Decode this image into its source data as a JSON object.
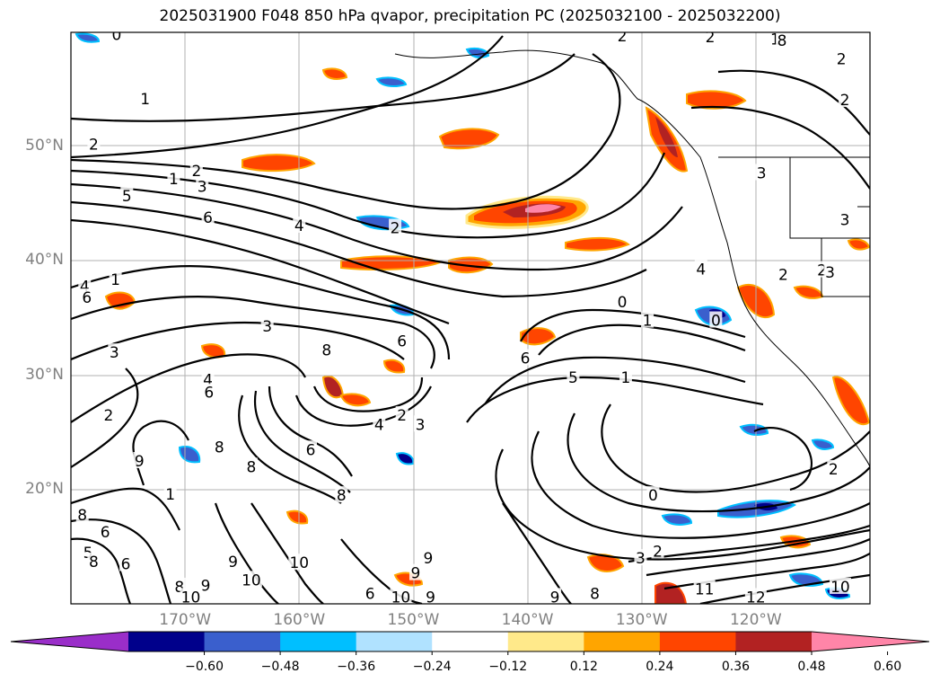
{
  "title": "2025031900 F048 850 hPa qvapor, precipitation PC (2025032100 - 2025032200)",
  "map": {
    "lat_labels": [
      "50°N",
      "40°N",
      "30°N",
      "20°N"
    ],
    "lat_values": [
      50,
      40,
      30,
      20
    ],
    "lon_labels": [
      "170°W",
      "160°W",
      "150°W",
      "140°W",
      "130°W",
      "120°W"
    ],
    "lon_values": [
      -170,
      -160,
      -150,
      -140,
      -130,
      -120
    ],
    "extent": {
      "lon_min": -180,
      "lon_max": -110,
      "lat_min": 10,
      "lat_max": 60
    },
    "contour_labels": [
      {
        "text": "0",
        "lon": -176,
        "lat": 59.8
      },
      {
        "text": "1",
        "lon": -173.5,
        "lat": 54.2
      },
      {
        "text": "2",
        "lon": -178,
        "lat": 50.2
      },
      {
        "text": "1",
        "lon": -171,
        "lat": 47.2
      },
      {
        "text": "2",
        "lon": -169,
        "lat": 47.9
      },
      {
        "text": "5",
        "lon": -175.1,
        "lat": 45.7
      },
      {
        "text": "3",
        "lon": -168.5,
        "lat": 46.5
      },
      {
        "text": "6",
        "lon": -168,
        "lat": 43.8
      },
      {
        "text": "4",
        "lon": -160,
        "lat": 43.1
      },
      {
        "text": "2",
        "lon": -151.6,
        "lat": 42.9
      },
      {
        "text": "4",
        "lon": -178.8,
        "lat": 37.8
      },
      {
        "text": "6",
        "lon": -178.6,
        "lat": 36.8
      },
      {
        "text": "1",
        "lon": -176.1,
        "lat": 38.4
      },
      {
        "text": "3",
        "lon": -162.8,
        "lat": 34.3
      },
      {
        "text": "8",
        "lon": -157.6,
        "lat": 32.2
      },
      {
        "text": "6",
        "lon": -151,
        "lat": 33.0
      },
      {
        "text": "3",
        "lon": -176.2,
        "lat": 32.0
      },
      {
        "text": "4",
        "lon": -168,
        "lat": 29.6
      },
      {
        "text": "6",
        "lon": -167.9,
        "lat": 28.5
      },
      {
        "text": "2",
        "lon": -176.7,
        "lat": 26.5
      },
      {
        "text": "2",
        "lon": -151,
        "lat": 26.5
      },
      {
        "text": "3",
        "lon": -149.4,
        "lat": 25.7
      },
      {
        "text": "4",
        "lon": -153,
        "lat": 25.7
      },
      {
        "text": "8",
        "lon": -167,
        "lat": 23.7
      },
      {
        "text": "9",
        "lon": -174,
        "lat": 22.5
      },
      {
        "text": "6",
        "lon": -159,
        "lat": 23.5
      },
      {
        "text": "8",
        "lon": -164.2,
        "lat": 22.0
      },
      {
        "text": "8",
        "lon": -156.3,
        "lat": 19.5
      },
      {
        "text": "1",
        "lon": -171.3,
        "lat": 19.6
      },
      {
        "text": "8",
        "lon": -179.0,
        "lat": 17.8
      },
      {
        "text": "6",
        "lon": -177,
        "lat": 16.3
      },
      {
        "text": "5",
        "lon": -178.5,
        "lat": 14.5
      },
      {
        "text": "8",
        "lon": -178.0,
        "lat": 13.7
      },
      {
        "text": "6",
        "lon": -175.2,
        "lat": 13.5
      },
      {
        "text": "9",
        "lon": -165.8,
        "lat": 13.7
      },
      {
        "text": "10",
        "lon": -160,
        "lat": 13.6
      },
      {
        "text": "9",
        "lon": -148.7,
        "lat": 14.0
      },
      {
        "text": "9",
        "lon": -149.8,
        "lat": 12.7
      },
      {
        "text": "10",
        "lon": -164.2,
        "lat": 12.1
      },
      {
        "text": "8",
        "lon": -170.5,
        "lat": 11.5
      },
      {
        "text": "10",
        "lon": -169.5,
        "lat": 10.6
      },
      {
        "text": "9",
        "lon": -168.2,
        "lat": 11.6
      },
      {
        "text": "10",
        "lon": -151.1,
        "lat": 10.6
      },
      {
        "text": "6",
        "lon": -153.8,
        "lat": 10.9
      },
      {
        "text": "9",
        "lon": -148.5,
        "lat": 10.6
      },
      {
        "text": "5",
        "lon": -136,
        "lat": 29.8
      },
      {
        "text": "6",
        "lon": -140.2,
        "lat": 31.5
      },
      {
        "text": "1",
        "lon": -129.5,
        "lat": 34.8
      },
      {
        "text": "0",
        "lon": -131.7,
        "lat": 36.4
      },
      {
        "text": "0",
        "lon": -123.5,
        "lat": 34.8
      },
      {
        "text": "1",
        "lon": -131.4,
        "lat": 29.8
      },
      {
        "text": "0",
        "lon": -129,
        "lat": 19.5
      },
      {
        "text": "2",
        "lon": -128.6,
        "lat": 14.6
      },
      {
        "text": "3",
        "lon": -130.1,
        "lat": 14.0
      },
      {
        "text": "9",
        "lon": -137.6,
        "lat": 10.6
      },
      {
        "text": "8",
        "lon": -134.1,
        "lat": 10.9
      },
      {
        "text": "11",
        "lon": -124.5,
        "lat": 11.3
      },
      {
        "text": "12",
        "lon": -120,
        "lat": 10.6
      },
      {
        "text": "10",
        "lon": -112.6,
        "lat": 11.5
      },
      {
        "text": "2",
        "lon": -131.7,
        "lat": 59.7
      },
      {
        "text": "2",
        "lon": -124,
        "lat": 59.6
      },
      {
        "text": "1",
        "lon": -118.3,
        "lat": 59.4
      },
      {
        "text": "8",
        "lon": -117.7,
        "lat": 59.3
      },
      {
        "text": "2",
        "lon": -112.5,
        "lat": 57.7
      },
      {
        "text": "2",
        "lon": -112.2,
        "lat": 54.1
      },
      {
        "text": "3",
        "lon": -119.5,
        "lat": 47.7
      },
      {
        "text": "3",
        "lon": -112.2,
        "lat": 43.6
      },
      {
        "text": "4",
        "lon": -124.8,
        "lat": 39.3
      },
      {
        "text": "2",
        "lon": -117.6,
        "lat": 38.8
      },
      {
        "text": "2",
        "lon": -114.2,
        "lat": 39.2
      },
      {
        "text": "3",
        "lon": -113.5,
        "lat": 39.0
      },
      {
        "text": "2",
        "lon": -113.2,
        "lat": 21.8
      }
    ]
  },
  "colorbar": {
    "levels": [
      "−0.60",
      "−0.48",
      "−0.36",
      "−0.24",
      "−0.12",
      "0.12",
      "0.24",
      "0.36",
      "0.48",
      "0.60"
    ],
    "colors": [
      "#9a2ec9",
      "#00008b",
      "#3a5fcd",
      "#00bfff",
      "#b0e2ff",
      "#ffffff",
      "#ffe98a",
      "#ffa500",
      "#ff4500",
      "#b22222",
      "#ff85a8"
    ]
  }
}
